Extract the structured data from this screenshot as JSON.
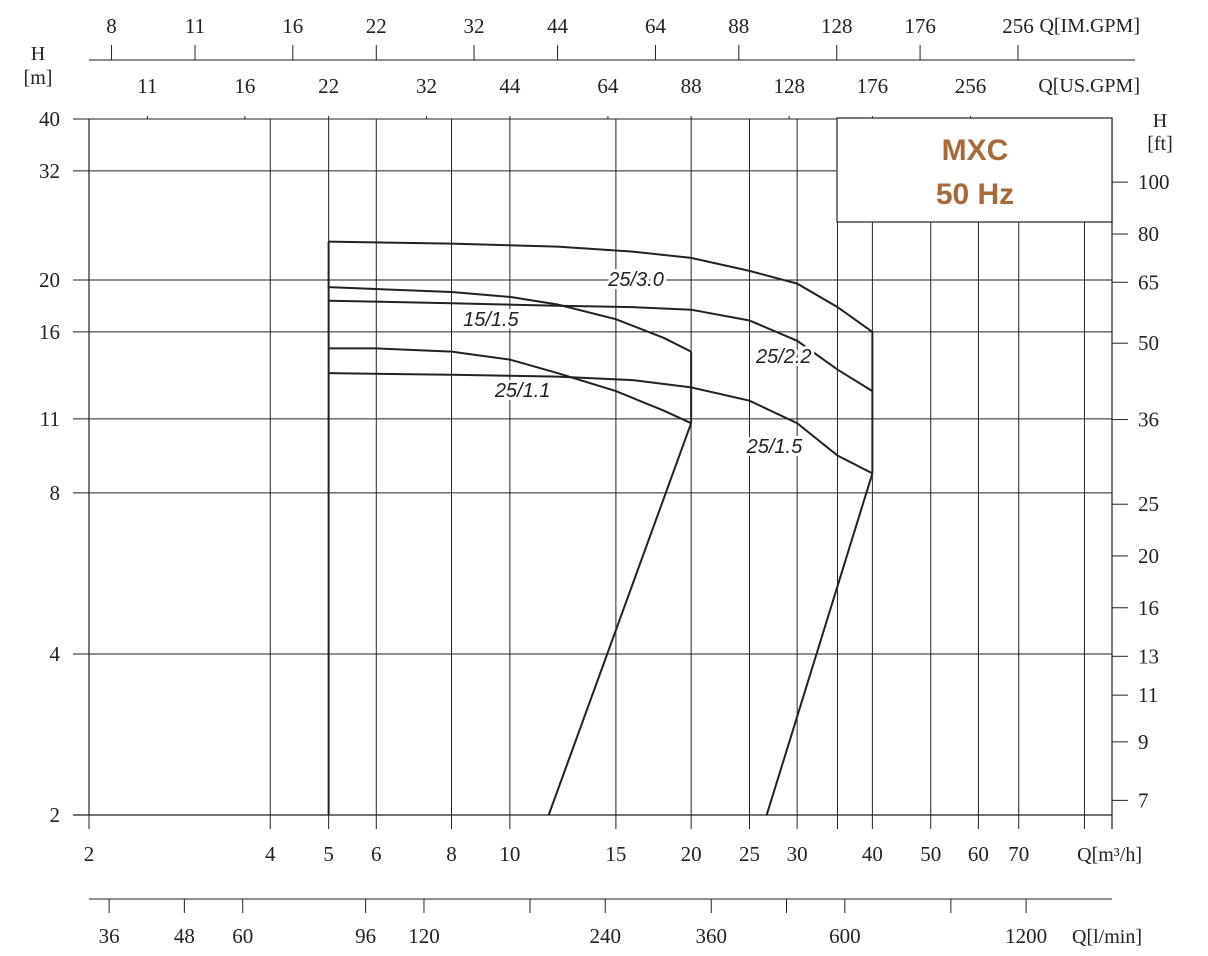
{
  "title_box": {
    "line1": "MXC",
    "line2": "50 Hz",
    "color": "#a86a3c"
  },
  "chart_data": {
    "type": "line",
    "x_scale": "log",
    "y_scale": "log",
    "xlim": [
      2,
      100
    ],
    "ylim": [
      2,
      40
    ],
    "grid": true,
    "x_axis": {
      "label": "Q[m³/h]",
      "ticks": [
        2,
        4,
        5,
        6,
        8,
        10,
        15,
        20,
        25,
        30,
        40,
        50,
        60,
        70
      ],
      "tick_labels": [
        "2",
        "4",
        "5",
        "6",
        "8",
        "10",
        "15",
        "20",
        "25",
        "30",
        "40",
        "50",
        "60",
        "70"
      ],
      "grid_values": [
        2,
        4,
        5,
        6,
        8,
        10,
        15,
        20,
        25,
        30,
        35,
        40,
        50,
        60,
        70,
        90
      ]
    },
    "y_axis": {
      "label_line1": "H",
      "label_line2": "[m]",
      "ticks": [
        2,
        4,
        8,
        11,
        16,
        20,
        32,
        40
      ],
      "tick_labels": [
        "2",
        "4",
        "8",
        "11",
        "16",
        "20",
        "32",
        "40"
      ]
    },
    "y_axis_right": {
      "label_line1": "H",
      "label_line2": "[ft]",
      "tick_labels": [
        "100",
        "80",
        "65",
        "50",
        "36",
        "25",
        "20",
        "16",
        "13",
        "11",
        "9",
        "7"
      ],
      "tick_m": [
        30.48,
        24.38,
        19.81,
        15.24,
        10.97,
        7.62,
        6.1,
        4.88,
        3.96,
        3.35,
        2.74,
        2.13
      ]
    },
    "top_axis_imp": {
      "label": "Q[IM.GPM]",
      "tick_labels": [
        "8",
        "11",
        "16",
        "22",
        "32",
        "44",
        "64",
        "88",
        "128",
        "176",
        "256"
      ],
      "tick_m3h": [
        2.18,
        3.0,
        4.36,
        6.0,
        8.72,
        12.0,
        17.45,
        24.0,
        34.9,
        48.0,
        69.8
      ]
    },
    "top_axis_us": {
      "label": "Q[US.GPM]",
      "tick_labels": [
        "11",
        "16",
        "22",
        "32",
        "44",
        "64",
        "88",
        "128",
        "176",
        "256"
      ],
      "tick_m3h": [
        2.5,
        3.63,
        5.0,
        7.27,
        10.0,
        14.55,
        20.0,
        29.1,
        40.0,
        58.2
      ]
    },
    "bottom_axis_lmin": {
      "label": "Q[l/min]",
      "tick_labels": [
        "36",
        "48",
        "60",
        "96",
        "120",
        "240",
        "360",
        "600",
        "1200"
      ],
      "tick_m3h": [
        2.16,
        2.88,
        3.6,
        5.76,
        7.2,
        14.4,
        21.6,
        36.0,
        72.0
      ],
      "minor_m3h": [
        2.16,
        2.88,
        3.6,
        5.76,
        7.2,
        10.8,
        14.4,
        21.6,
        28.8,
        36.0,
        54.0,
        72.0
      ]
    },
    "series": [
      {
        "name": "25/3.0",
        "label_at": [
          16.2,
          19.5
        ],
        "points": [
          [
            5,
            23.6
          ],
          [
            8,
            23.4
          ],
          [
            12,
            23.1
          ],
          [
            16,
            22.6
          ],
          [
            20,
            22.0
          ],
          [
            25,
            20.8
          ],
          [
            30,
            19.7
          ],
          [
            35,
            17.8
          ],
          [
            40,
            16.0
          ]
        ]
      },
      {
        "name": "25/2.2",
        "label_at": [
          28.5,
          14.0
        ],
        "points": [
          [
            5,
            18.3
          ],
          [
            8,
            18.1
          ],
          [
            12,
            17.9
          ],
          [
            16,
            17.8
          ],
          [
            20,
            17.6
          ],
          [
            25,
            16.8
          ],
          [
            30,
            15.4
          ],
          [
            35,
            13.6
          ],
          [
            40,
            12.4
          ]
        ]
      },
      {
        "name": "25/1.5",
        "label_at": [
          27.5,
          9.5
        ],
        "points": [
          [
            5,
            13.4
          ],
          [
            8,
            13.3
          ],
          [
            12,
            13.2
          ],
          [
            16,
            13.0
          ],
          [
            20,
            12.6
          ],
          [
            25,
            11.9
          ],
          [
            30,
            10.8
          ],
          [
            35,
            9.4
          ],
          [
            40,
            8.7
          ]
        ]
      },
      {
        "name": "15/1.5",
        "label_at": [
          9.3,
          16.4
        ],
        "points": [
          [
            5,
            19.4
          ],
          [
            8,
            19.0
          ],
          [
            10,
            18.6
          ],
          [
            12,
            18.0
          ],
          [
            15,
            16.9
          ],
          [
            18,
            15.6
          ],
          [
            20,
            14.7
          ]
        ]
      },
      {
        "name": "25/1.1",
        "label_at": [
          10.5,
          12.1
        ],
        "points": [
          [
            5,
            14.9
          ],
          [
            6,
            14.9
          ],
          [
            8,
            14.7
          ],
          [
            10,
            14.2
          ],
          [
            12,
            13.4
          ],
          [
            15,
            12.4
          ],
          [
            18,
            11.4
          ],
          [
            20,
            10.8
          ]
        ]
      }
    ]
  }
}
